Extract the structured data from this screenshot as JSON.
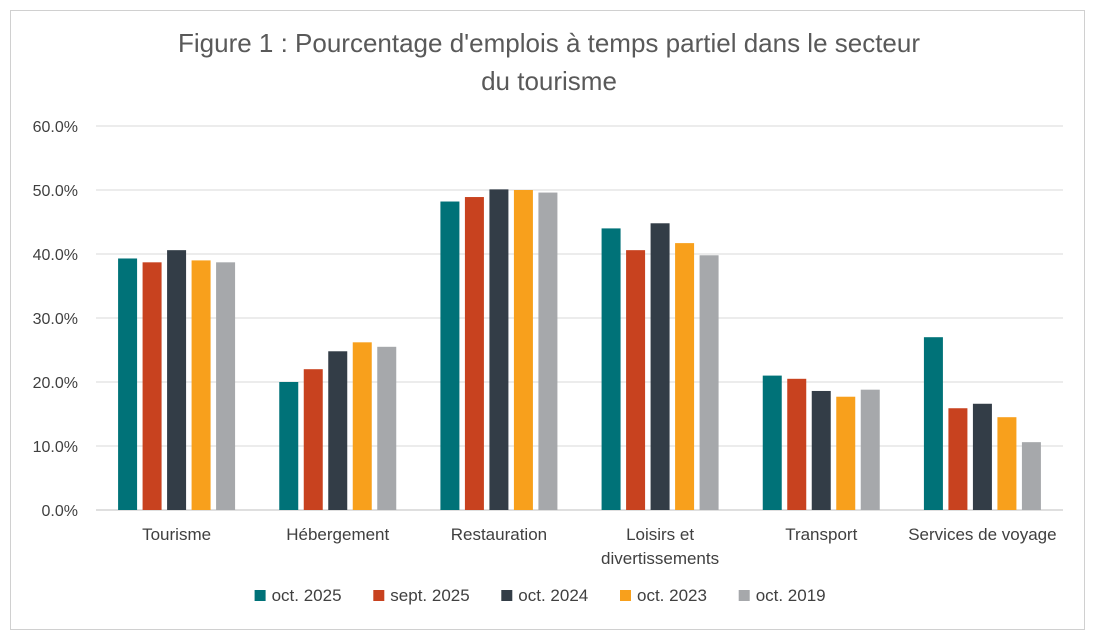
{
  "chart_data": {
    "type": "bar",
    "title_lines": [
      "Figure 1 : Pourcentage d'emplois à temps partiel dans le secteur",
      "du tourisme"
    ],
    "categories": [
      [
        "Tourisme"
      ],
      [
        "Hébergement"
      ],
      [
        "Restauration"
      ],
      [
        "Loisirs et",
        "divertissements"
      ],
      [
        "Transport"
      ],
      [
        "Services de voyage"
      ]
    ],
    "yticks": [
      "0.0%",
      "10.0%",
      "20.0%",
      "30.0%",
      "40.0%",
      "50.0%",
      "60.0%"
    ],
    "ylim": [
      0,
      60
    ],
    "grid": true,
    "legend_position": "bottom",
    "series": [
      {
        "name": "oct. 2025",
        "color": "#007278",
        "values": [
          39.3,
          20.0,
          48.2,
          44.0,
          21.0,
          27.0
        ]
      },
      {
        "name": "sept. 2025",
        "color": "#C8421F",
        "values": [
          38.7,
          22.0,
          48.9,
          40.6,
          20.5,
          15.9
        ]
      },
      {
        "name": "oct. 2024",
        "color": "#333D47",
        "values": [
          40.6,
          24.8,
          50.1,
          44.8,
          18.6,
          16.6
        ]
      },
      {
        "name": "oct. 2023",
        "color": "#F8A01C",
        "values": [
          39.0,
          26.2,
          50.0,
          41.7,
          17.7,
          14.5
        ]
      },
      {
        "name": "oct. 2019",
        "color": "#A6A8AB",
        "values": [
          38.7,
          25.5,
          49.6,
          39.8,
          18.8,
          10.6
        ]
      }
    ]
  }
}
